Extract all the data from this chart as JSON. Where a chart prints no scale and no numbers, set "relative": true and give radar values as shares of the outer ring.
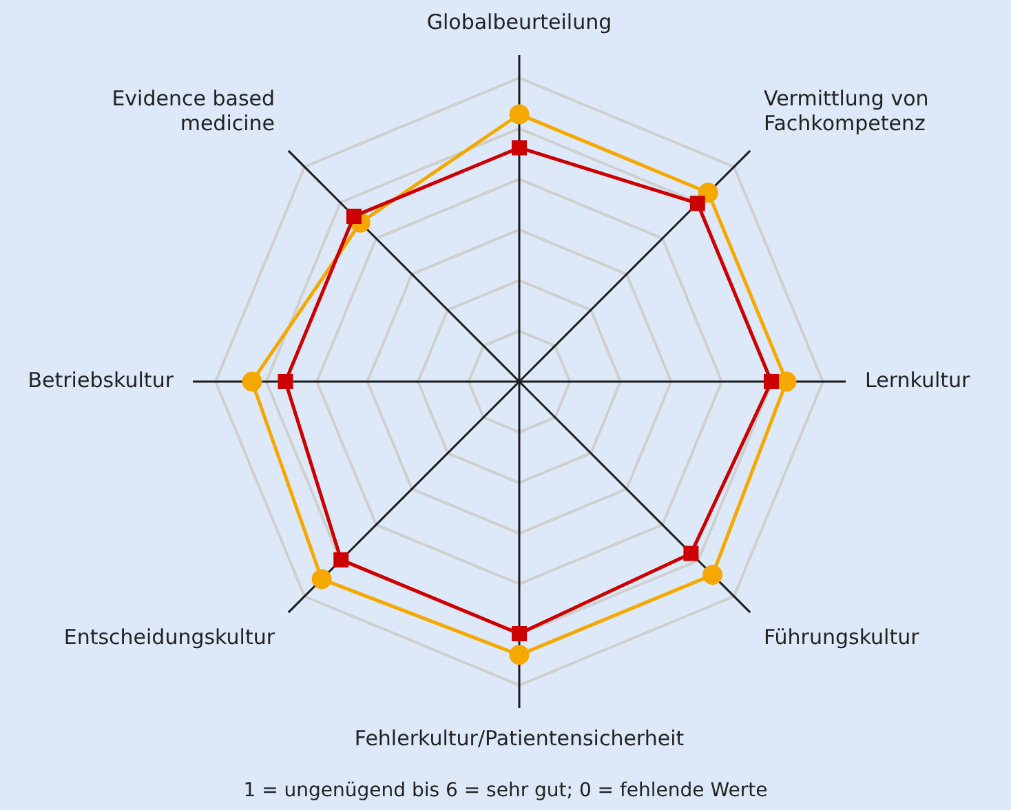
{
  "chart_data": {
    "type": "radar",
    "relative": true,
    "categories": [
      "Globalbeurteilung",
      "Vermittlung von Fachkompetenz",
      "Lernkultur",
      "Führungskultur",
      "Fehlerkultur/Patientensicherheit",
      "Entscheidungskultur",
      "Betriebskultur",
      "Evidence based medicine"
    ],
    "series": [
      {
        "color": "#f5a800",
        "marker": "circle",
        "values": [
          0.88,
          0.88,
          0.88,
          0.9,
          0.9,
          0.92,
          0.88,
          0.74
        ]
      },
      {
        "color": "#cc0000",
        "marker": "square",
        "values": [
          0.77,
          0.83,
          0.83,
          0.8,
          0.83,
          0.83,
          0.77,
          0.77
        ]
      }
    ],
    "legend": false,
    "annotations": [
      "1 = ungenügend bis 6 = sehr gut; 0 = fehlende Werte"
    ]
  }
}
